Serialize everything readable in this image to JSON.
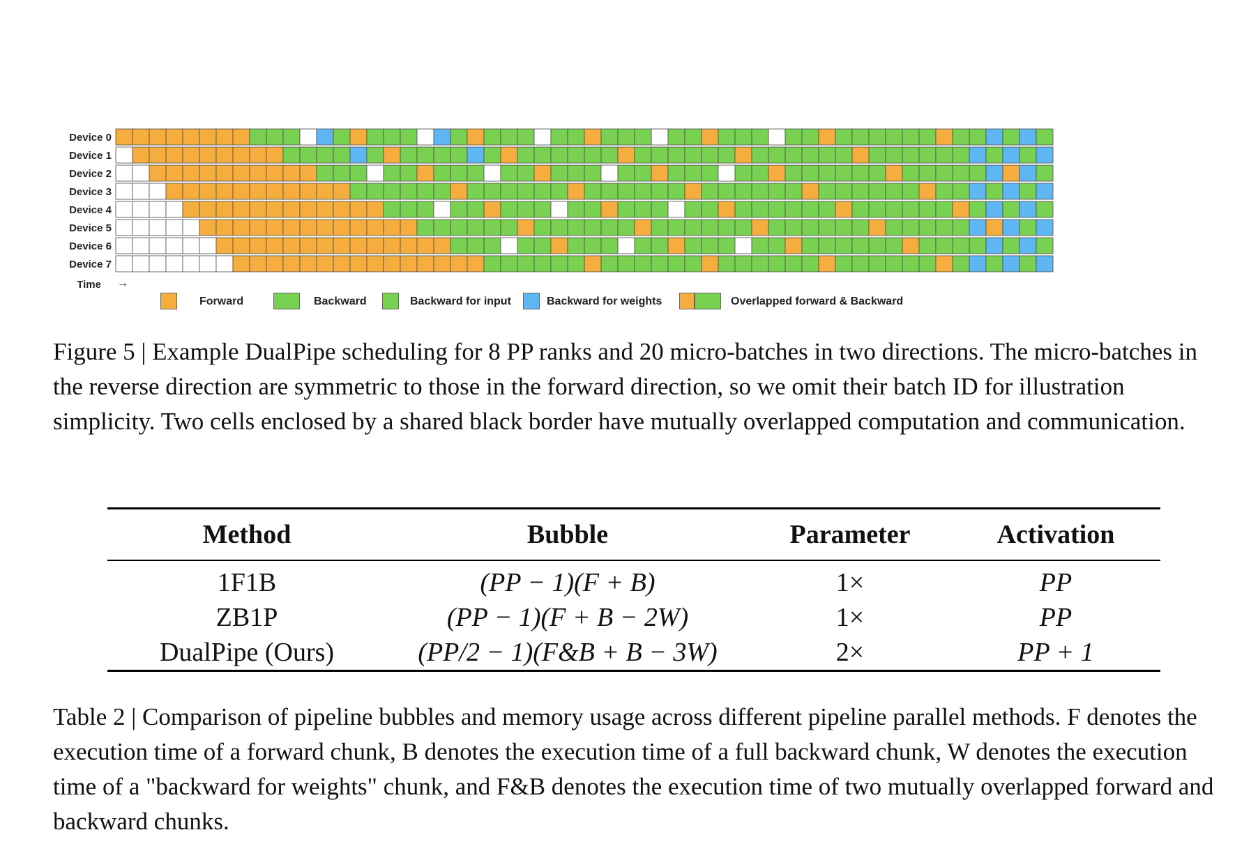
{
  "schedule": {
    "devices": [
      "Device 0",
      "Device 1",
      "Device 2",
      "Device 3",
      "Device 4",
      "Device 5",
      "Device 6",
      "Device 7"
    ],
    "time_label": "Time",
    "time_arrow": "→",
    "colors": {
      "forward": "#f5ad3f",
      "backward": "#78d150",
      "backward_input": "#78d150",
      "backward_weights": "#5eb6f2",
      "idle": "#ffffff"
    }
  },
  "legend": [
    {
      "label": "Forward",
      "type": "forward"
    },
    {
      "label": "Backward",
      "type": "backward"
    },
    {
      "label": "Backward for input",
      "type": "backward_input"
    },
    {
      "label": "Backward for weights",
      "type": "backward_weights"
    },
    {
      "label": "Overlapped forward & Backward",
      "type": "overlapped"
    }
  ],
  "figure_caption": "Figure 5 | Example DualPipe scheduling for 8 PP ranks and 20 micro-batches in two directions. The micro-batches in the reverse direction are symmetric to those in the forward direction, so we omit their batch ID for illustration simplicity. Two cells enclosed by a shared black border have mutually overlapped computation and communication.",
  "table": {
    "headers": [
      "Method",
      "Bubble",
      "Parameter",
      "Activation"
    ],
    "rows": [
      [
        "1F1B",
        "(PP − 1)(F + B)",
        "1×",
        "PP"
      ],
      [
        "ZB1P",
        "(PP − 1)(F + B − 2W)",
        "1×",
        "PP"
      ],
      [
        "DualPipe (Ours)",
        "(PP/2 − 1)(F&B + B − 3W)",
        "2×",
        "PP + 1"
      ]
    ]
  },
  "table_caption": "Table 2 | Comparison of pipeline bubbles and memory usage across different pipeline parallel methods. F denotes the execution time of a forward chunk, B denotes the execution time of a full backward chunk, W denotes the execution time of a \"backward for weights\" chunk, and F&B denotes the execution time of two mutually overlapped forward and backward chunks."
}
